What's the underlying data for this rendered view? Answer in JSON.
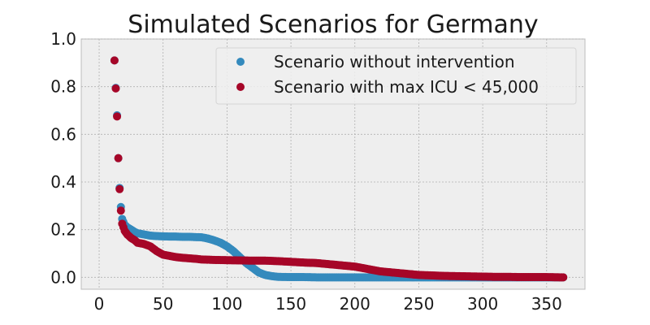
{
  "chart_data": {
    "type": "scatter",
    "title": "Simulated Scenarios for Germany",
    "xlabel": "",
    "ylabel": "",
    "xlim": [
      -14,
      380
    ],
    "ylim": [
      -0.05,
      1.0
    ],
    "xticks": [
      0,
      50,
      100,
      150,
      200,
      250,
      300,
      350
    ],
    "yticks": [
      0.0,
      0.2,
      0.4,
      0.6,
      0.8,
      1.0
    ],
    "grid": true,
    "legend_position": "top-right",
    "colors": {
      "plot_bg": "#eeeeee",
      "grid": "#b0b0b0",
      "frame": "#bcbcbc"
    },
    "series": [
      {
        "name": "Scenario without intervention",
        "color": "#348abd",
        "x": [
          12,
          14,
          15,
          16,
          17,
          18,
          20,
          22,
          25,
          28,
          30,
          35,
          40,
          45,
          50,
          55,
          60,
          65,
          70,
          75,
          80,
          85,
          90,
          95,
          100,
          105,
          110,
          115,
          120,
          125,
          130,
          135,
          140,
          150,
          160,
          170,
          180,
          190,
          200,
          210,
          220,
          230,
          240,
          250,
          260,
          270,
          280,
          290,
          300,
          310,
          320,
          330,
          340,
          350,
          360,
          363
        ],
        "y": [
          0.91,
          0.68,
          0.5,
          0.375,
          0.295,
          0.245,
          0.22,
          0.21,
          0.2,
          0.19,
          0.185,
          0.18,
          0.175,
          0.173,
          0.172,
          0.171,
          0.171,
          0.17,
          0.17,
          0.169,
          0.168,
          0.163,
          0.155,
          0.145,
          0.13,
          0.11,
          0.085,
          0.06,
          0.04,
          0.02,
          0.01,
          0.005,
          0.002,
          0.001,
          0.001,
          0.0,
          0.0,
          0.0,
          0.0,
          0.0,
          0.0,
          0.0,
          0.0,
          0.0,
          0.0,
          0.0,
          0.0,
          0.0,
          0.0,
          0.0,
          0.0,
          0.0,
          0.0,
          0.0,
          0.0,
          0.0
        ]
      },
      {
        "name": "Scenario with max ICU < 45,000",
        "color": "#a60628",
        "x": [
          12,
          14,
          15,
          16,
          17,
          18,
          20,
          22,
          25,
          28,
          30,
          35,
          40,
          45,
          50,
          55,
          60,
          65,
          70,
          75,
          80,
          90,
          100,
          110,
          120,
          130,
          140,
          150,
          160,
          170,
          180,
          190,
          200,
          210,
          220,
          230,
          240,
          250,
          260,
          270,
          280,
          290,
          300,
          310,
          320,
          330,
          340,
          350,
          360,
          363
        ],
        "y": [
          0.91,
          0.675,
          0.5,
          0.37,
          0.28,
          0.225,
          0.195,
          0.18,
          0.165,
          0.155,
          0.145,
          0.14,
          0.13,
          0.11,
          0.095,
          0.09,
          0.085,
          0.082,
          0.08,
          0.078,
          0.075,
          0.073,
          0.072,
          0.071,
          0.07,
          0.07,
          0.068,
          0.065,
          0.062,
          0.06,
          0.055,
          0.05,
          0.045,
          0.035,
          0.025,
          0.02,
          0.015,
          0.01,
          0.008,
          0.006,
          0.005,
          0.004,
          0.003,
          0.002,
          0.002,
          0.001,
          0.001,
          0.001,
          0.0,
          0.0
        ]
      }
    ]
  }
}
